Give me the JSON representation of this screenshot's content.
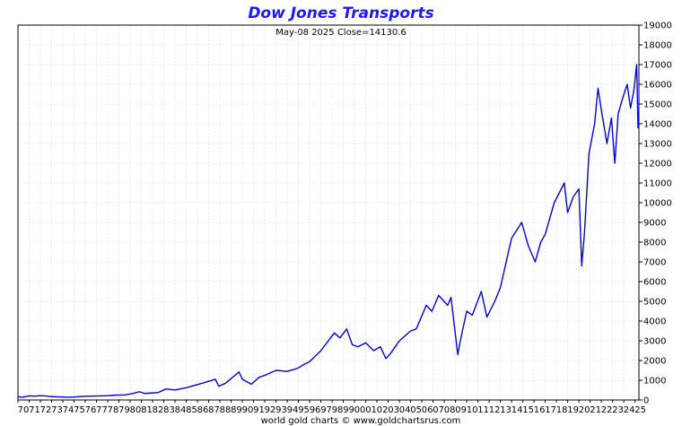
{
  "colors": {
    "title": "#1a1aff",
    "line": "#0000ee",
    "grid": "#cfe3ef",
    "frame": "#000000"
  },
  "chart_data": {
    "type": "line",
    "title": "Dow Jones Transports",
    "subtitle": "May-08  2025   Close=14130.6",
    "footer": "world gold charts © www.goldchartsrus.com",
    "xlabel": "",
    "ylabel": "",
    "xlim": [
      1970,
      2025.35
    ],
    "ylim": [
      0,
      19000
    ],
    "ytick_step": 1000,
    "x_tick_labels": [
      "70",
      "71",
      "72",
      "73",
      "74",
      "75",
      "76",
      "77",
      "78",
      "79",
      "80",
      "81",
      "82",
      "83",
      "84",
      "85",
      "86",
      "87",
      "88",
      "89",
      "90",
      "91",
      "92",
      "93",
      "94",
      "95",
      "96",
      "97",
      "98",
      "99",
      "00",
      "01",
      "02",
      "03",
      "04",
      "05",
      "06",
      "07",
      "08",
      "09",
      "10",
      "11",
      "12",
      "13",
      "14",
      "15",
      "16",
      "17",
      "18",
      "19",
      "20",
      "21",
      "22",
      "23",
      "24",
      "25"
    ],
    "grid": true,
    "series": [
      {
        "x": [
          1970,
          1970.4,
          1971,
          1971.5,
          1972,
          1972.5,
          1973,
          1973.5,
          1974,
          1974.5,
          1975,
          1976,
          1977,
          1978,
          1978.8,
          1979.5,
          1980.2,
          1980.8,
          1981.3,
          1982.5,
          1983.2,
          1984,
          1985,
          1986,
          1987.6,
          1987.9,
          1988.5,
          1989.7,
          1990,
          1990.8,
          1991.5,
          1992,
          1993,
          1994,
          1994.9,
          1995.5,
          1996,
          1997,
          1998.2,
          1998.7,
          1999.3,
          1999.8,
          2000.3,
          2001,
          2001.7,
          2002.3,
          2002.8,
          2003.2,
          2004,
          2005,
          2005.5,
          2006.4,
          2006.9,
          2007.5,
          2008.3,
          2008.6,
          2009.2,
          2009.5,
          2010,
          2010.5,
          2011.3,
          2011.8,
          2012.5,
          2013,
          2014,
          2014.9,
          2015.5,
          2016.1,
          2016.6,
          2017,
          2017.8,
          2018.7,
          2018.99,
          2019.5,
          2020,
          2020.25,
          2020.5,
          2020.9,
          2021.4,
          2021.7,
          2022,
          2022.5,
          2022.9,
          2023.2,
          2023.5,
          2023.9,
          2024.3,
          2024.6,
          2024.9,
          2025.15,
          2025.27,
          2025.35
        ],
        "values": [
          170,
          140,
          210,
          195,
          220,
          200,
          170,
          160,
          150,
          140,
          150,
          190,
          200,
          220,
          250,
          260,
          320,
          420,
          330,
          380,
          560,
          510,
          620,
          780,
          1050,
          700,
          850,
          1420,
          1050,
          800,
          1150,
          1250,
          1500,
          1450,
          1600,
          1800,
          1950,
          2500,
          3400,
          3150,
          3600,
          2800,
          2700,
          2900,
          2500,
          2700,
          2100,
          2350,
          3000,
          3500,
          3600,
          4800,
          4500,
          5300,
          4800,
          5200,
          2300,
          3200,
          4500,
          4300,
          5500,
          4200,
          5000,
          5700,
          8200,
          9000,
          7800,
          7000,
          8000,
          8400,
          10000,
          11000,
          9500,
          10300,
          10700,
          6800,
          8500,
          12500,
          14000,
          15800,
          14700,
          13000,
          14300,
          12000,
          14500,
          15300,
          16000,
          14800,
          15700,
          17000,
          13800,
          14130
        ]
      }
    ]
  }
}
